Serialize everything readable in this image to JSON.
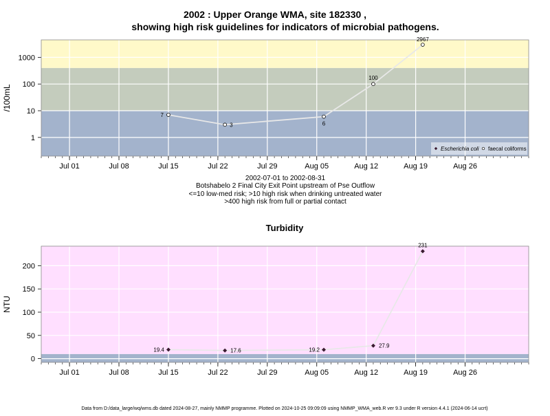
{
  "title_line1": "2002 : Upper Orange WMA, site 182330 ,",
  "title_line2": "showing high risk guidelines for indicators of microbial pathogens.",
  "x_ticks": [
    "Jul 01",
    "Jul 08",
    "Jul 15",
    "Jul 22",
    "Jul 29",
    "Aug 05",
    "Aug 12",
    "Aug 19",
    "Aug 26"
  ],
  "x_tick_dates": [
    "2002-07-01",
    "2002-07-08",
    "2002-07-15",
    "2002-07-22",
    "2002-07-29",
    "2002-08-05",
    "2002-08-12",
    "2002-08-19",
    "2002-08-26"
  ],
  "subtitle": {
    "date_range": "2002-07-01 to 2002-08-31",
    "site": "Botshabelo 2 Final City Exit Point upstream of Pse Outflow",
    "risk1": "<=10 low-med risk; >10 high risk when drinking untreated water",
    "risk2": ">400 high risk from full or partial contact"
  },
  "footer": "Data from D:/data_large/wq/wms.db dated 2024-08-27, mainly NMMP programme. Plotted on 2024-10-25 09:09:09 using NMMP_WMA_web.R ver 9.3 under R version 4.4.1 (2024-06-14 ucrt)",
  "chart_data": [
    {
      "type": "line",
      "ylabel": "/100mL",
      "y_scale": "log",
      "ylim": [
        0.2,
        4500
      ],
      "xlim": [
        "2002-06-27",
        "2002-09-04"
      ],
      "y_ticks": [
        1,
        10,
        100,
        1000
      ],
      "y_tick_labels": [
        "1",
        "10",
        "100",
        "1000"
      ],
      "grid": true,
      "bands": [
        {
          "from": 0.2,
          "to": 10,
          "color": "#a3b3cc"
        },
        {
          "from": 10,
          "to": 400,
          "color": "#c4ccbd"
        },
        {
          "from": 400,
          "to": 4500,
          "color": "#fff9c9"
        }
      ],
      "legend": {
        "position": "bottom-right",
        "entries": [
          "Escherichia coli",
          "faecal coliforms"
        ]
      },
      "series": [
        {
          "name": "faecal coliforms",
          "x": [
            "2002-07-15",
            "2002-07-23",
            "2002-08-06",
            "2002-08-13",
            "2002-08-20"
          ],
          "values": [
            7,
            3,
            6,
            100,
            2967
          ],
          "labels": [
            "7",
            "3",
            "6",
            "100",
            "2967"
          ]
        }
      ]
    },
    {
      "type": "line",
      "title": "Turbidity",
      "ylabel": "NTU",
      "ylim": [
        -8,
        242
      ],
      "xlim": [
        "2002-06-27",
        "2002-09-04"
      ],
      "y_ticks": [
        0,
        50,
        100,
        150,
        200
      ],
      "y_tick_labels": [
        "0",
        "50",
        "100",
        "150",
        "200"
      ],
      "grid": true,
      "bands": [
        {
          "from": -8,
          "to": 10,
          "color": "#a3b3cc"
        },
        {
          "from": 10,
          "to": 242,
          "color": "#ffdfff"
        }
      ],
      "series": [
        {
          "x": [
            "2002-07-15",
            "2002-07-23",
            "2002-08-06",
            "2002-08-13",
            "2002-08-20"
          ],
          "values": [
            19.4,
            17.6,
            19.2,
            27.9,
            231
          ],
          "labels": [
            "19.4",
            "17.6",
            "19.2",
            "27.9",
            "231"
          ]
        }
      ]
    }
  ]
}
